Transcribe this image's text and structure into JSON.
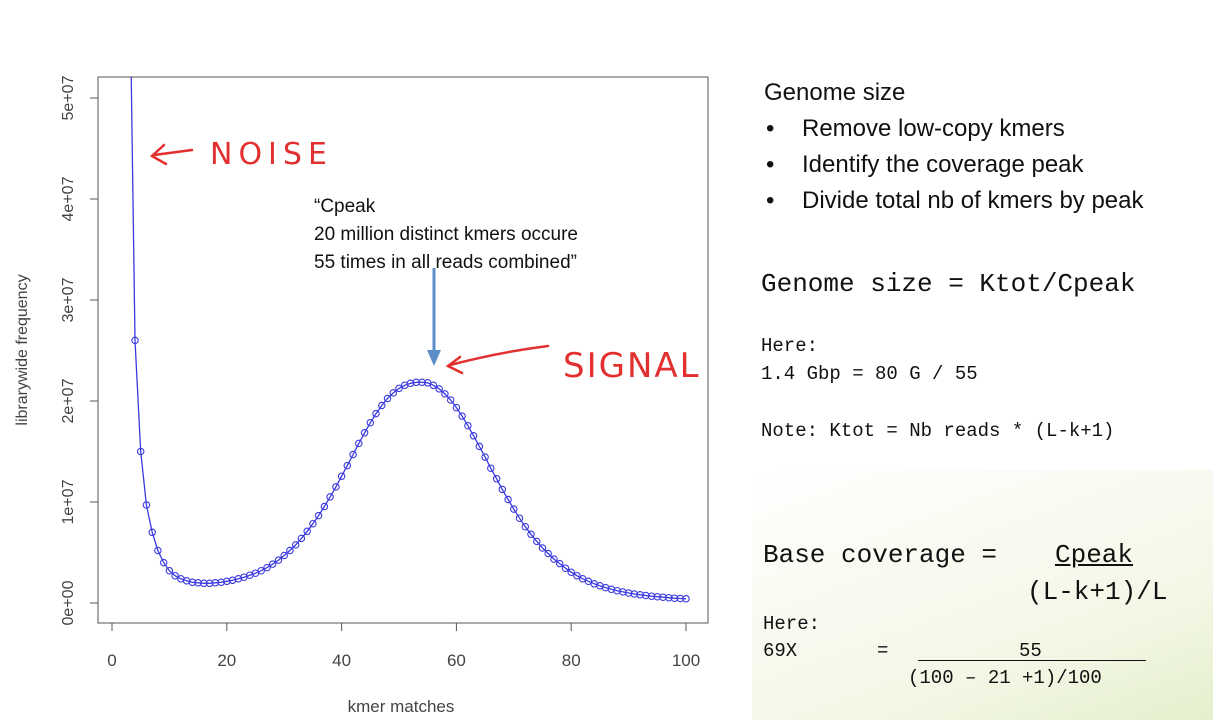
{
  "chart_data": {
    "type": "scatter",
    "title": "",
    "xlabel": "kmer matches",
    "ylabel": "librarywide frequency",
    "xlim": [
      0,
      100
    ],
    "ylim": [
      0,
      50000000
    ],
    "x_ticks": [
      "0",
      "20",
      "40",
      "60",
      "80",
      "100"
    ],
    "y_ticks": [
      "0e+00",
      "1e+07",
      "2e+07",
      "3e+07",
      "4e+07",
      "5e+07"
    ],
    "line_color": "#3a3ae0",
    "series": [
      {
        "x": [
          4,
          5,
          6,
          7,
          8,
          9,
          10,
          11,
          12,
          13,
          14,
          15,
          16,
          17,
          18,
          19,
          20,
          21,
          22,
          23,
          24,
          25,
          26,
          27,
          28,
          29,
          30,
          31,
          32,
          33,
          34,
          35,
          36,
          37,
          38,
          39,
          40,
          41,
          42,
          43,
          44,
          45,
          46,
          47,
          48,
          49,
          50,
          51,
          52,
          53,
          54,
          55,
          56,
          57,
          58,
          59,
          60,
          61,
          62,
          63,
          64,
          65,
          66,
          67,
          68,
          69,
          70,
          71,
          72,
          73,
          74,
          75,
          76,
          77,
          78,
          79,
          80,
          81,
          82,
          83,
          84,
          85,
          86,
          87,
          88,
          89,
          90,
          91,
          92,
          93,
          94,
          95,
          96,
          97,
          98,
          99,
          100
        ],
        "y": [
          26000000,
          15000000,
          9700000,
          7000000,
          5200000,
          4000000,
          3200000,
          2700000,
          2400000,
          2200000,
          2050000,
          2000000,
          1950000,
          1950000,
          2000000,
          2050000,
          2150000,
          2250000,
          2400000,
          2550000,
          2750000,
          2950000,
          3200000,
          3500000,
          3850000,
          4250000,
          4700000,
          5200000,
          5750000,
          6400000,
          7100000,
          7850000,
          8650000,
          9550000,
          10500000,
          11500000,
          12550000,
          13600000,
          14700000,
          15800000,
          16850000,
          17850000,
          18750000,
          19550000,
          20250000,
          20800000,
          21250000,
          21550000,
          21750000,
          21850000,
          21850000,
          21800000,
          21550000,
          21200000,
          20700000,
          20100000,
          19350000,
          18500000,
          17550000,
          16550000,
          15500000,
          14450000,
          13350000,
          12300000,
          11250000,
          10250000,
          9300000,
          8400000,
          7550000,
          6800000,
          6100000,
          5450000,
          4900000,
          4350000,
          3900000,
          3450000,
          3050000,
          2700000,
          2400000,
          2150000,
          1900000,
          1700000,
          1520000,
          1360000,
          1220000,
          1100000,
          990000,
          890000,
          810000,
          740000,
          670000,
          620000,
          570000,
          520000,
          480000,
          450000,
          420000
        ]
      }
    ]
  },
  "annotation": {
    "line1": "“Cpeak",
    "line2": "20 million distinct kmers occure",
    "line3": "55 times in all reads combined”"
  },
  "handwritten": {
    "noise": "NOISE",
    "signal": "SIGNAL"
  },
  "right_panel": {
    "heading": "Genome size",
    "bullets": [
      "Remove low-copy kmers",
      "Identify the coverage peak",
      "Divide total nb of kmers by peak"
    ],
    "formula1": "Genome size = Ktot/Cpeak",
    "here1_label": "Here:",
    "here1_value": "1.4 Gbp = 80 G / 55",
    "note": "Note: Ktot = Nb reads * (L-k+1)",
    "formula2_left": "Base coverage =",
    "formula2_num": "Cpeak",
    "formula2_den": "(L-k+1)/L",
    "here2_label": "Here:",
    "here2_left": "69X",
    "here2_eq": "=",
    "here2_num": "55",
    "here2_den": "(100 – 21 +1)/100"
  }
}
